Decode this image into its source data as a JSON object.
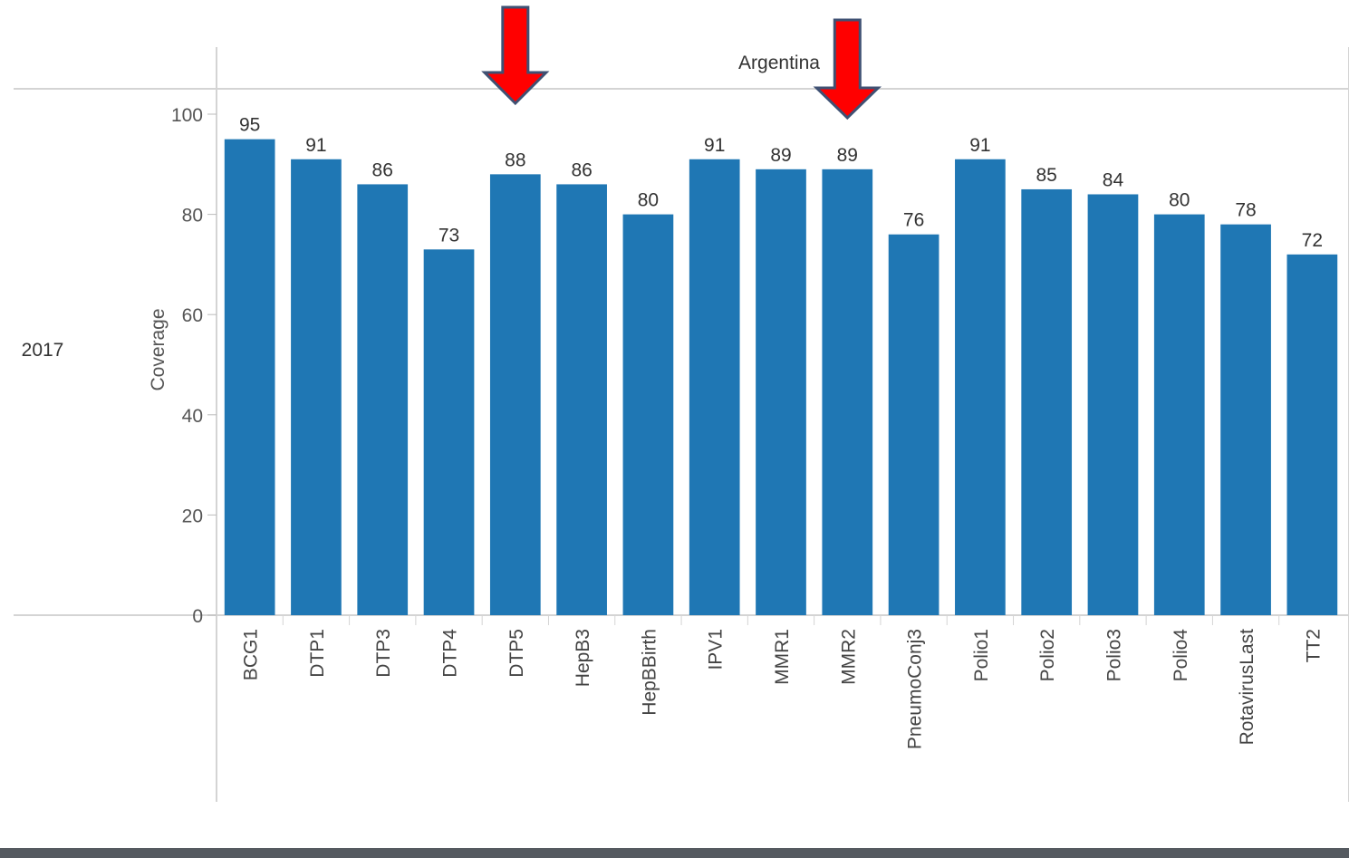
{
  "header": {
    "column_label": "Argentina",
    "row_label": "2017"
  },
  "chart_data": {
    "type": "bar",
    "title": "",
    "xlabel": "",
    "ylabel": "Coverage",
    "ylim": [
      0,
      100
    ],
    "yticks": [
      "0",
      "20",
      "40",
      "60",
      "80",
      "100"
    ],
    "categories": [
      "BCG1",
      "DTP1",
      "DTP3",
      "DTP4",
      "DTP5",
      "HepB3",
      "HepBBirth",
      "IPV1",
      "MMR1",
      "MMR2",
      "PneumoConj3",
      "Polio1",
      "Polio2",
      "Polio3",
      "Polio4",
      "RotavirusLast",
      "TT2"
    ],
    "values": [
      95,
      91,
      86,
      73,
      88,
      86,
      80,
      91,
      89,
      89,
      76,
      91,
      85,
      84,
      80,
      78,
      72
    ],
    "data_labels": [
      "95",
      "91",
      "86",
      "73",
      "88",
      "86",
      "80",
      "91",
      "89",
      "89",
      "76",
      "91",
      "85",
      "84",
      "80",
      "78",
      "72"
    ],
    "grid": false,
    "bar_color": "#1f77b4",
    "annotations": [
      {
        "kind": "arrow-down",
        "category": "DTP5",
        "color": "#ff0000"
      },
      {
        "kind": "arrow-down",
        "category": "MMR2",
        "color": "#ff0000"
      }
    ]
  }
}
